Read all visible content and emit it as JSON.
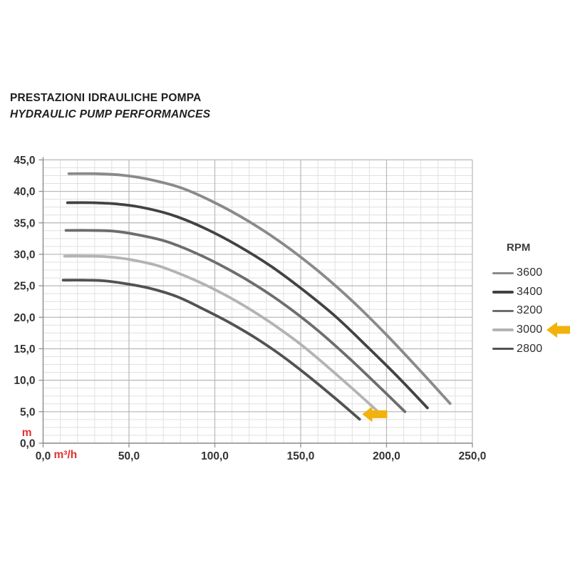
{
  "header": {
    "title_it": "PRESTAZIONI IDRAULICHE POMPA",
    "title_en": "HYDRAULIC PUMP PERFORMANCES"
  },
  "chart_data": {
    "type": "line",
    "title": "",
    "xlabel": "m³/h",
    "ylabel": "m",
    "xlim": [
      0,
      250
    ],
    "ylim": [
      0,
      45
    ],
    "x_major_step": 50,
    "x_minor_step": 10,
    "y_major_step": 5,
    "y_minor_step": 1.25,
    "grid": true,
    "x_ticks": [
      {
        "value": 0,
        "label": "0,0"
      },
      {
        "value": 50,
        "label": "50,0"
      },
      {
        "value": 100,
        "label": "100,0"
      },
      {
        "value": 150,
        "label": "150,0"
      },
      {
        "value": 200,
        "label": "200,0"
      },
      {
        "value": 250,
        "label": "250,0"
      }
    ],
    "y_ticks": [
      {
        "value": 0,
        "label": "0,0"
      },
      {
        "value": 5,
        "label": "5,0"
      },
      {
        "value": 10,
        "label": "10,0"
      },
      {
        "value": 15,
        "label": "15,0"
      },
      {
        "value": 20,
        "label": "20,0"
      },
      {
        "value": 25,
        "label": "25,0"
      },
      {
        "value": 30,
        "label": "30,0"
      },
      {
        "value": 35,
        "label": "35,0"
      },
      {
        "value": 40,
        "label": "40,0"
      },
      {
        "value": 45,
        "label": "45,0"
      }
    ],
    "legend": {
      "title": "RPM",
      "position": "right"
    },
    "series": [
      {
        "name": "3600",
        "color": "#8a8a8a",
        "highlighted": false,
        "points": [
          [
            15,
            42.8
          ],
          [
            30,
            42.8
          ],
          [
            45,
            42.6
          ],
          [
            60,
            42.0
          ],
          [
            80,
            40.6
          ],
          [
            100,
            38.2
          ],
          [
            120,
            35.2
          ],
          [
            140,
            31.6
          ],
          [
            160,
            27.4
          ],
          [
            180,
            22.6
          ],
          [
            200,
            17.2
          ],
          [
            220,
            11.4
          ],
          [
            237,
            6.3
          ]
        ]
      },
      {
        "name": "3400",
        "color": "#424242",
        "highlighted": false,
        "points": [
          [
            14.2,
            38.2
          ],
          [
            28.3,
            38.2
          ],
          [
            42.5,
            38.0
          ],
          [
            56.7,
            37.5
          ],
          [
            75.6,
            36.2
          ],
          [
            94.4,
            34.1
          ],
          [
            113.3,
            31.4
          ],
          [
            132.2,
            28.2
          ],
          [
            151.1,
            24.4
          ],
          [
            170.0,
            20.2
          ],
          [
            188.9,
            15.3
          ],
          [
            207.8,
            10.2
          ],
          [
            223.8,
            5.6
          ]
        ]
      },
      {
        "name": "3200",
        "color": "#6d6d6d",
        "highlighted": false,
        "points": [
          [
            13.3,
            33.8
          ],
          [
            26.7,
            33.8
          ],
          [
            40.0,
            33.7
          ],
          [
            53.3,
            33.2
          ],
          [
            71.1,
            32.1
          ],
          [
            88.9,
            30.2
          ],
          [
            106.7,
            27.8
          ],
          [
            124.4,
            25.0
          ],
          [
            142.2,
            21.7
          ],
          [
            160.0,
            17.9
          ],
          [
            177.8,
            13.6
          ],
          [
            195.6,
            9.0
          ],
          [
            210.7,
            5.0
          ]
        ]
      },
      {
        "name": "3000",
        "color": "#b3b3b3",
        "highlighted": true,
        "points": [
          [
            12.5,
            29.7
          ],
          [
            25.0,
            29.7
          ],
          [
            37.5,
            29.6
          ],
          [
            50.0,
            29.2
          ],
          [
            66.7,
            28.2
          ],
          [
            83.3,
            26.5
          ],
          [
            100.0,
            24.4
          ],
          [
            116.7,
            21.9
          ],
          [
            133.3,
            19.0
          ],
          [
            150.0,
            15.7
          ],
          [
            166.7,
            11.9
          ],
          [
            183.3,
            7.9
          ],
          [
            197.5,
            4.4
          ]
        ]
      },
      {
        "name": "2800",
        "color": "#525252",
        "highlighted": false,
        "points": [
          [
            11.7,
            25.9
          ],
          [
            23.3,
            25.9
          ],
          [
            35.0,
            25.8
          ],
          [
            46.7,
            25.4
          ],
          [
            62.2,
            24.6
          ],
          [
            77.8,
            23.3
          ],
          [
            93.3,
            21.3
          ],
          [
            108.9,
            19.1
          ],
          [
            124.4,
            16.6
          ],
          [
            140.0,
            13.7
          ],
          [
            155.6,
            10.4
          ],
          [
            171.1,
            6.9
          ],
          [
            184.3,
            3.8
          ]
        ]
      }
    ],
    "annotations": [
      {
        "id": "curve-arrow",
        "type": "arrow-left",
        "x": 200,
        "y": 4.6,
        "points_at": "3000 curve end",
        "color": "#f2b20c"
      },
      {
        "id": "legend-arrow",
        "type": "arrow-left",
        "points_at": "legend entry 3000",
        "color": "#f2b20c"
      }
    ],
    "axis_unit_labels": {
      "x": {
        "text": "m³/h",
        "color": "#e03131"
      },
      "y": {
        "text": "m",
        "color": "#e03131"
      }
    }
  },
  "colors": {
    "background": "#ffffff",
    "grid_minor": "#e0e0e0",
    "grid_major": "#b8b8b8",
    "axis": "#8f8f8f",
    "tick_label": "#333333",
    "title_text": "#1f1f1f",
    "legend_label": "#2e2e2e",
    "highlight_arrow": "#f2b20c"
  }
}
